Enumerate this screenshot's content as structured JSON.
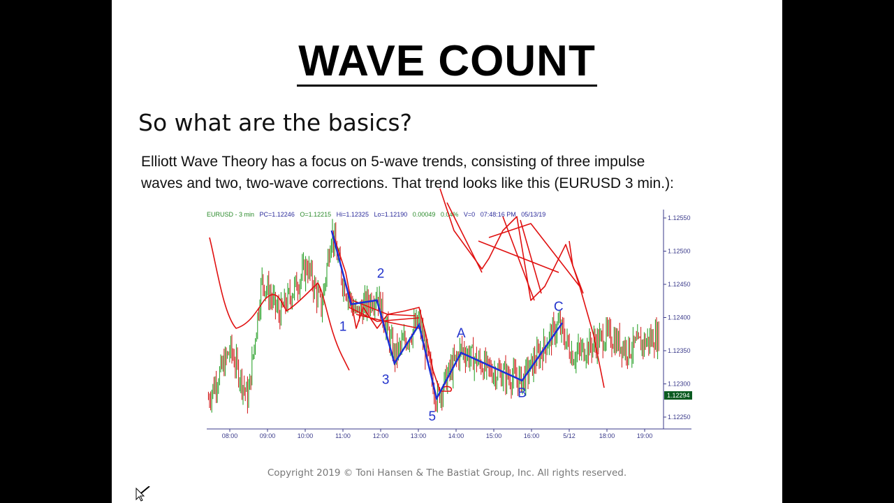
{
  "slide": {
    "title": "WAVE COUNT",
    "subtitle": "So what are the basics?",
    "paragraph_line1": "Elliott Wave Theory has a focus on 5-wave trends, consisting of three impulse",
    "paragraph_line2": "waves and two, two-wave corrections. That trend looks like this (EURUSD 3 min.):",
    "copyright": "Copyright 2019 © Toni Hansen & The Bastiat Group, Inc. All rights reserved."
  },
  "chart_data": {
    "type": "ohlc",
    "header": {
      "symbol": "EURUSD - 3 min",
      "pc": "PC=1.12246",
      "open": "O=1.12215",
      "high": "Hi=1.12325",
      "low": "Lo=1.12190",
      "change": "0.00049",
      "pct": "0.04%",
      "volume": "V=0",
      "time": "07:48:16 PM",
      "date": "05/13/19"
    },
    "ylim": [
      1.1223,
      1.1257
    ],
    "y_ticks": [
      "1.12550",
      "1.12500",
      "1.12450",
      "1.12400",
      "1.12350",
      "1.12300",
      "1.12250"
    ],
    "x_ticks": [
      "08:00",
      "09:00",
      "10:00",
      "11:00",
      "12:00",
      "13:00",
      "14:00",
      "15:00",
      "16:00",
      "5/12",
      "18:00",
      "19:00"
    ],
    "last_price": "1.12294",
    "price_path": [
      [
        "07:26",
        1.12278
      ],
      [
        "08:01",
        1.12352
      ],
      [
        "08:29",
        1.12278
      ],
      [
        "08:51",
        1.12457
      ],
      [
        "09:19",
        1.12405
      ],
      [
        "10:03",
        1.12478
      ],
      [
        "10:26",
        1.12415
      ],
      [
        "10:42",
        1.12531
      ],
      [
        "10:59",
        1.12457
      ],
      [
        "11:21",
        1.12405
      ],
      [
        "11:54",
        1.12436
      ],
      [
        "12:22",
        1.12342
      ],
      [
        "13:01",
        1.12394
      ],
      [
        "13:29",
        1.12278
      ],
      [
        "14:08",
        1.12352
      ],
      [
        "14:52",
        1.12321
      ],
      [
        "15:45",
        1.12305
      ],
      [
        "16:43",
        1.12389
      ],
      [
        "17:06",
        1.12342
      ],
      [
        "18:01",
        1.12373
      ],
      [
        "18:34",
        1.12352
      ],
      [
        "19:24",
        1.12373
      ]
    ],
    "wave_lines": [
      [
        "10:42",
        1.12531
      ],
      [
        "11:13",
        1.1242
      ],
      [
        "11:54",
        1.12426
      ],
      [
        "12:22",
        1.12331
      ],
      [
        "13:01",
        1.12389
      ],
      [
        "13:29",
        1.12278
      ],
      [
        "14:08",
        1.12347
      ],
      [
        "15:45",
        1.12305
      ],
      [
        "16:49",
        1.12392
      ]
    ],
    "wave_labels": [
      {
        "text": "1",
        "time": "11:00",
        "price": 1.1238
      },
      {
        "text": "2",
        "time": "12:00",
        "price": 1.1246
      },
      {
        "text": "3",
        "time": "12:08",
        "price": 1.123
      },
      {
        "text": "5",
        "time": "13:22",
        "price": 1.12245
      },
      {
        "text": "A",
        "time": "14:08",
        "price": 1.1237
      },
      {
        "text": "B",
        "time": "15:45",
        "price": 1.1228
      },
      {
        "text": "C",
        "time": "16:43",
        "price": 1.1241
      }
    ],
    "colors": {
      "up": "#1a9a1a",
      "down": "#d01010",
      "wave": "#1a2fd6",
      "annotation": "#e01010",
      "axis": "#3a3a8a"
    }
  }
}
